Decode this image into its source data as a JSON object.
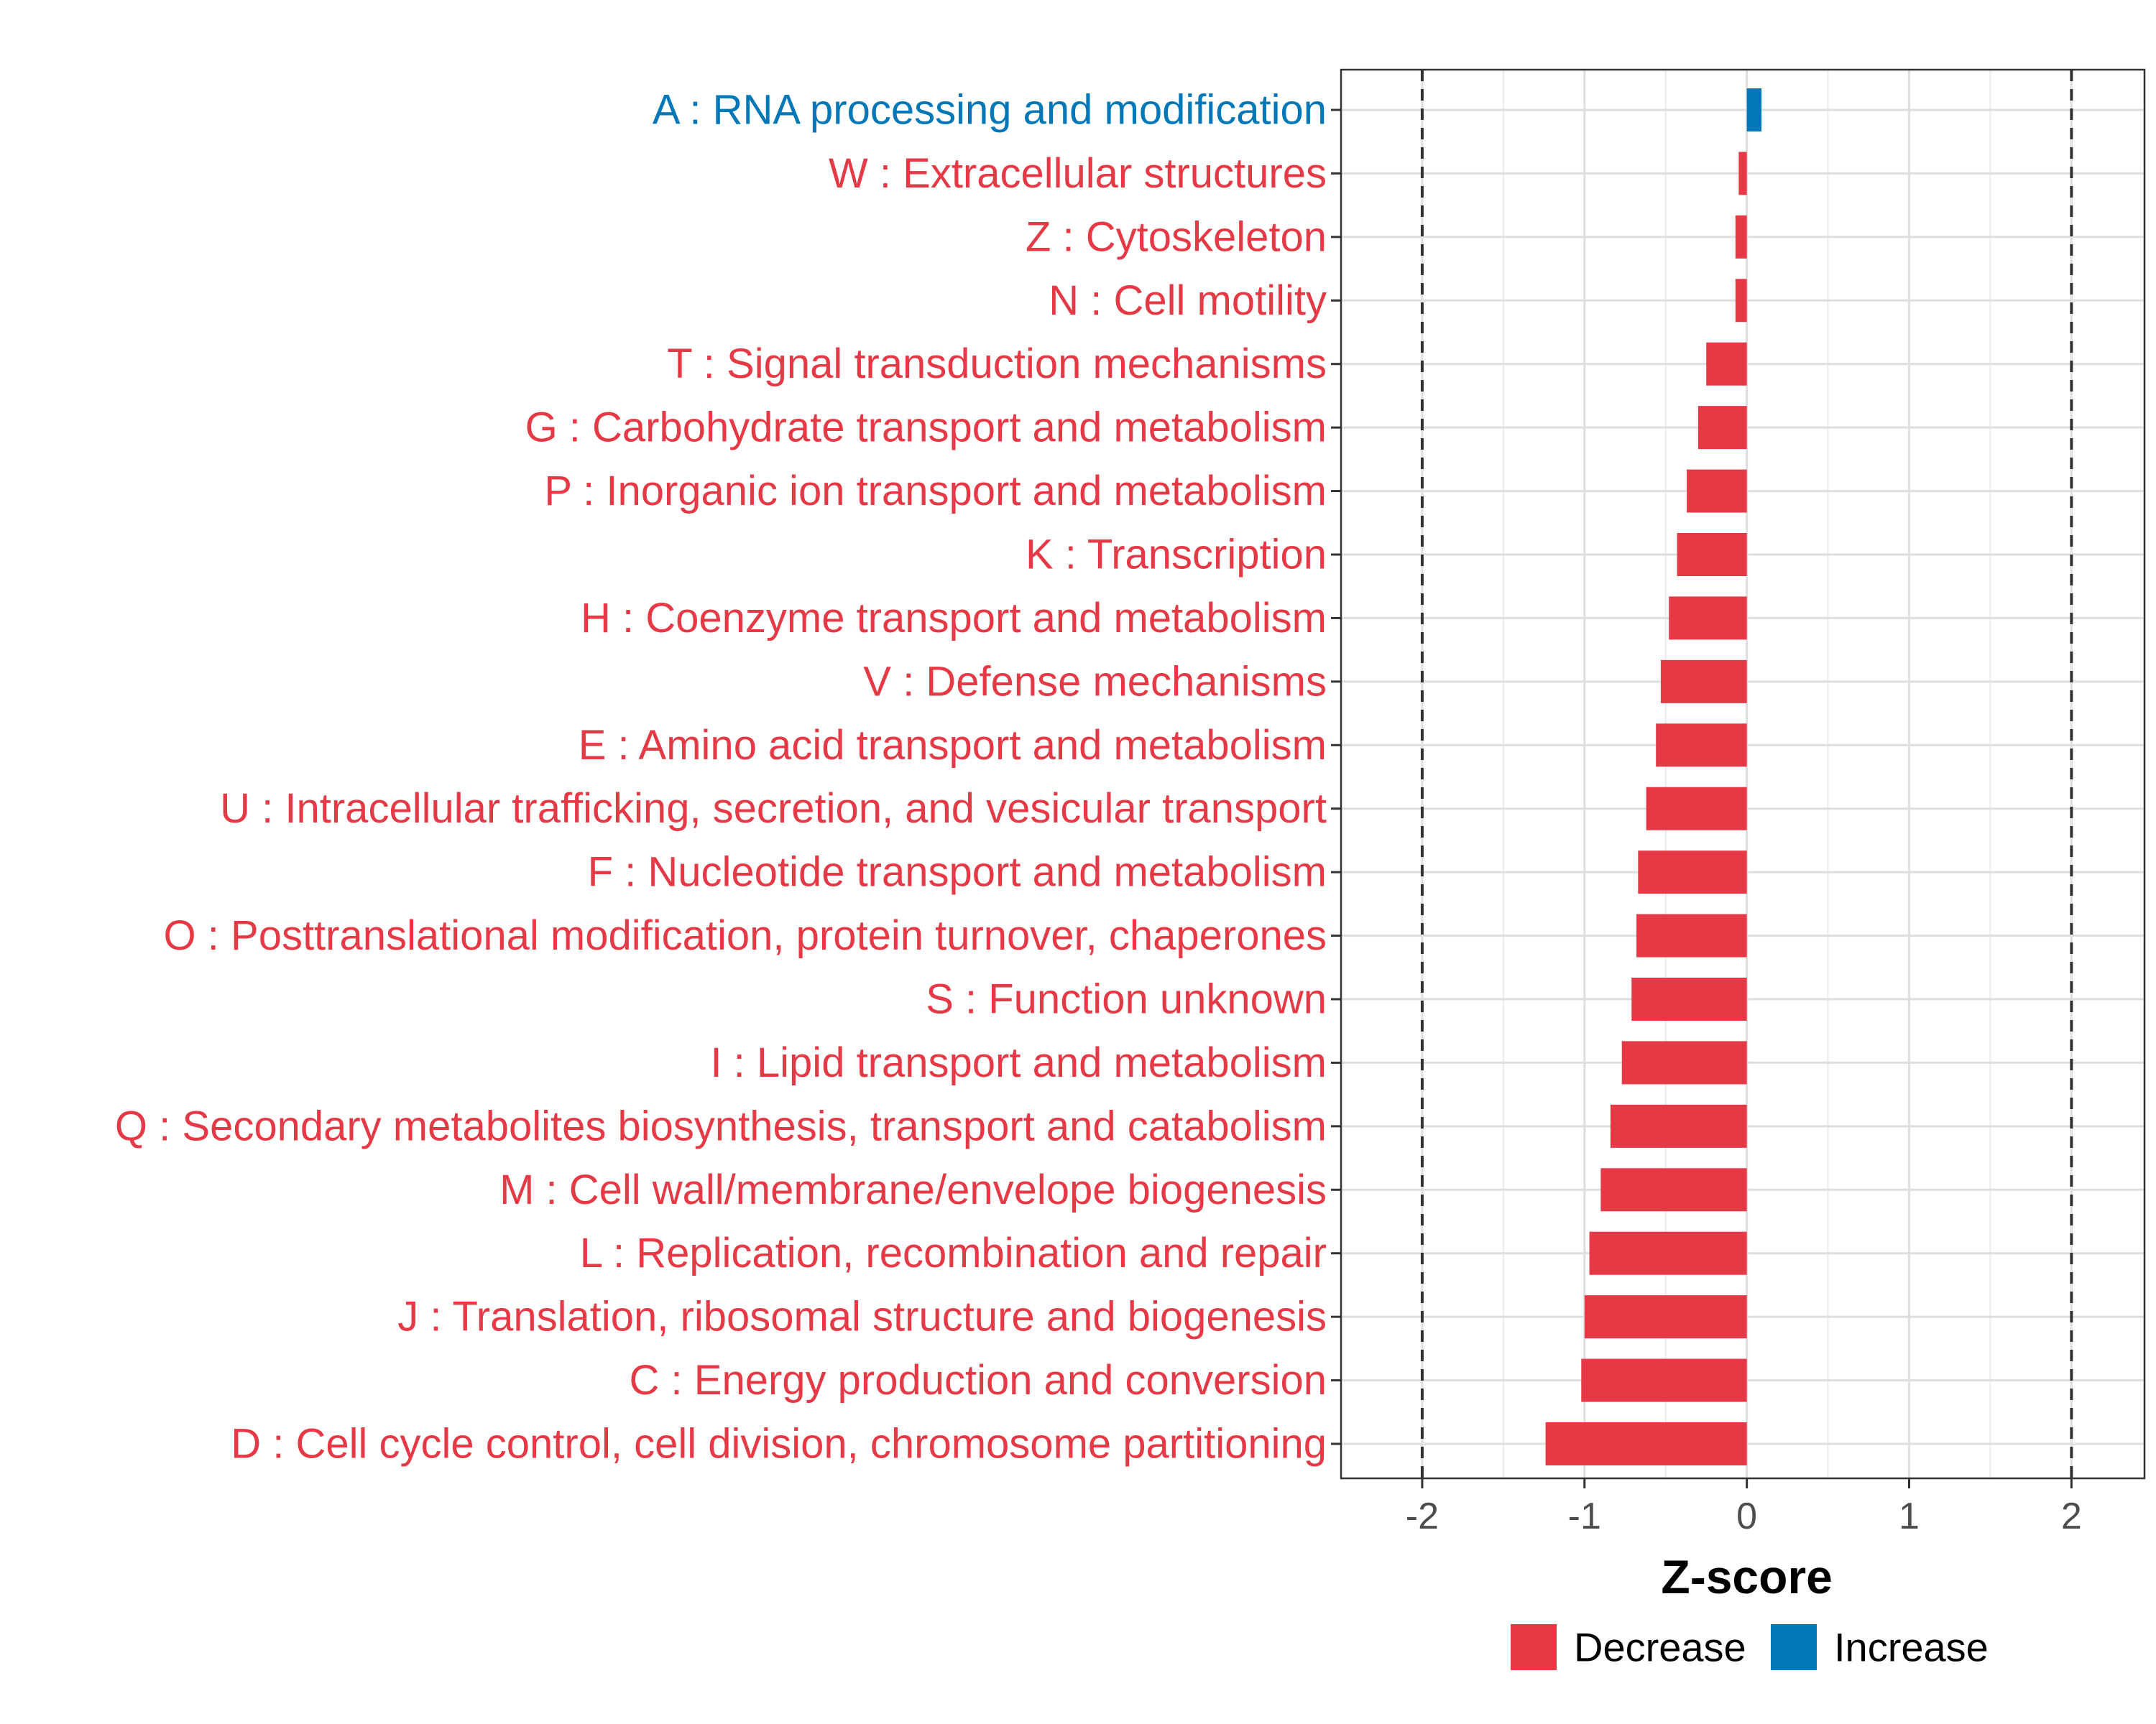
{
  "chart_data": {
    "type": "bar",
    "orientation": "horizontal",
    "xlabel": "Z-score",
    "ylabel": "",
    "xlim": [
      -2.5,
      2.45
    ],
    "x_ticks": [
      -2,
      -1,
      0,
      1,
      2
    ],
    "x_tick_labels": [
      "-2",
      "-1",
      "0",
      "1",
      "2"
    ],
    "reference_lines": [
      -2,
      2
    ],
    "grid": true,
    "legend": {
      "position": "bottom-right",
      "entries": [
        {
          "label": "Decrease",
          "color": "#e63946"
        },
        {
          "label": "Increase",
          "color": "#0077b6"
        }
      ]
    },
    "categories": [
      "A : RNA processing and modification",
      "W : Extracellular structures",
      "Z : Cytoskeleton",
      "N : Cell motility",
      "T : Signal transduction mechanisms",
      "G : Carbohydrate transport and metabolism",
      "P : Inorganic ion transport and metabolism",
      "K : Transcription",
      "H : Coenzyme transport and metabolism",
      "V : Defense mechanisms",
      "E : Amino acid transport and metabolism",
      "U : Intracellular trafficking, secretion, and vesicular transport",
      "F : Nucleotide transport and metabolism",
      "O : Posttranslational modification, protein turnover, chaperones",
      "S : Function unknown",
      "I : Lipid transport and metabolism",
      "Q : Secondary metabolites biosynthesis, transport and catabolism",
      "M : Cell wall/membrane/envelope biogenesis",
      "L : Replication, recombination and repair",
      "J : Translation, ribosomal structure and biogenesis",
      "C : Energy production and conversion",
      "D : Cell cycle control, cell division, chromosome partitioning"
    ],
    "values": [
      0.09,
      -0.05,
      -0.07,
      -0.07,
      -0.25,
      -0.3,
      -0.37,
      -0.43,
      -0.48,
      -0.53,
      -0.56,
      -0.62,
      -0.67,
      -0.68,
      -0.71,
      -0.77,
      -0.84,
      -0.9,
      -0.97,
      -1.0,
      -1.02,
      -1.24
    ],
    "direction": [
      "Increase",
      "Decrease",
      "Decrease",
      "Decrease",
      "Decrease",
      "Decrease",
      "Decrease",
      "Decrease",
      "Decrease",
      "Decrease",
      "Decrease",
      "Decrease",
      "Decrease",
      "Decrease",
      "Decrease",
      "Decrease",
      "Decrease",
      "Decrease",
      "Decrease",
      "Decrease",
      "Decrease",
      "Decrease"
    ]
  }
}
